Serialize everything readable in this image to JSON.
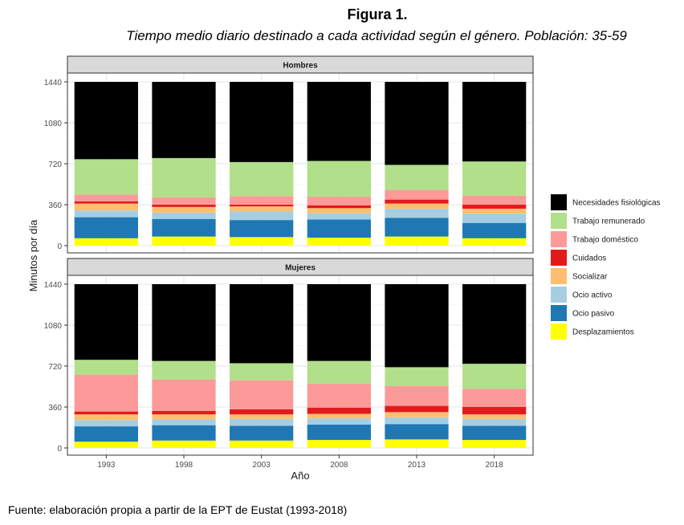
{
  "figure": {
    "title": "Figura 1.",
    "subtitle": "Tiempo medio diario destinado a cada actividad según el género. Población: 35-59",
    "source": "Fuente: elaboración propia a partir de la EPT de Eustat (1993-2018)"
  },
  "chart_data": {
    "type": "bar",
    "stacked": true,
    "xlabel": "Año",
    "ylabel": "Minutos por día",
    "categories": [
      "1993",
      "1998",
      "2003",
      "2008",
      "2013",
      "2018"
    ],
    "yticks": [
      0,
      360,
      720,
      1080,
      1440
    ],
    "ylim": [
      0,
      1440
    ],
    "grid": true,
    "legend_position": "right",
    "legend": [
      {
        "key": "desplazamientos",
        "name": "Desplazamientos",
        "color": "#ffff00"
      },
      {
        "key": "ocio_pasivo",
        "name": "Ocio pasivo",
        "color": "#1f78b4"
      },
      {
        "key": "ocio_activo",
        "name": "Ocio activo",
        "color": "#a6cee3"
      },
      {
        "key": "socializar",
        "name": "Socializar",
        "color": "#fdbf6f"
      },
      {
        "key": "cuidados",
        "name": "Cuidados",
        "color": "#e31a1c"
      },
      {
        "key": "trabajo_domestico",
        "name": "Trabajo doméstico",
        "color": "#fb9a99"
      },
      {
        "key": "trabajo_remunerado",
        "name": "Trabajo remunerado",
        "color": "#b2df8a"
      },
      {
        "key": "necesidades_fisiologicas",
        "name": "Necesidades fisiológicas",
        "color": "#000000"
      }
    ],
    "panels": [
      {
        "name": "Hombres",
        "series": {
          "desplazamientos": [
            65,
            80,
            75,
            70,
            80,
            65
          ],
          "ocio_pasivo": [
            185,
            155,
            150,
            160,
            165,
            135
          ],
          "ocio_activo": [
            60,
            55,
            75,
            55,
            80,
            80
          ],
          "socializar": [
            60,
            50,
            45,
            45,
            45,
            45
          ],
          "cuidados": [
            20,
            20,
            15,
            25,
            35,
            35
          ],
          "trabajo_domestico": [
            60,
            65,
            75,
            75,
            85,
            80
          ],
          "trabajo_remunerado": [
            310,
            345,
            300,
            315,
            220,
            300
          ],
          "necesidades_fisiologicas": [
            680,
            670,
            705,
            695,
            730,
            700
          ]
        }
      },
      {
        "name": "Mujeres",
        "series": {
          "desplazamientos": [
            55,
            65,
            65,
            70,
            75,
            70
          ],
          "ocio_pasivo": [
            135,
            135,
            130,
            135,
            135,
            125
          ],
          "ocio_activo": [
            55,
            50,
            60,
            55,
            60,
            60
          ],
          "socializar": [
            50,
            45,
            40,
            40,
            45,
            40
          ],
          "cuidados": [
            25,
            30,
            45,
            55,
            55,
            65
          ],
          "trabajo_domestico": [
            325,
            275,
            255,
            210,
            175,
            160
          ],
          "trabajo_remunerado": [
            130,
            165,
            150,
            200,
            165,
            220
          ],
          "necesidades_fisiologicas": [
            665,
            675,
            695,
            675,
            730,
            700
          ]
        }
      }
    ]
  }
}
